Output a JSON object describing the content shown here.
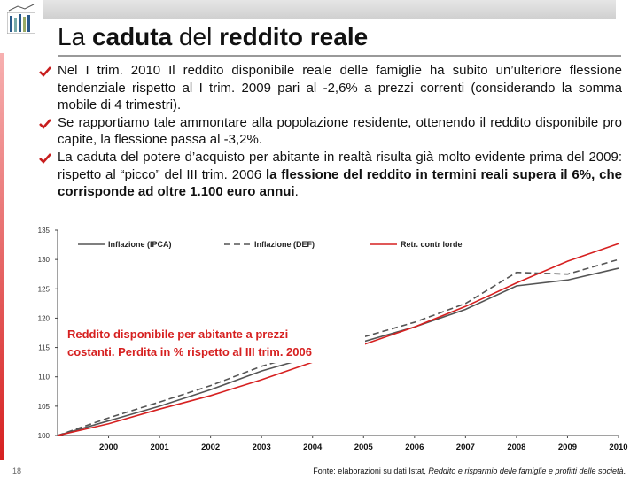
{
  "slide_number": "18",
  "title_parts": [
    "La ",
    "caduta",
    " del ",
    "reddito reale"
  ],
  "bullets": [
    [
      "Nel I trim. 2010 Il reddito disponibile reale delle famiglie ha subito un’ulteriore flessione tendenziale rispetto al I trim. 2009 pari al -2,6% a prezzi correnti (considerando la somma mobile di 4 trimestri)."
    ],
    [
      "Se rapportiamo tale ammontare alla popolazione residente, ottenendo il reddito disponibile pro capite, la flessione passa al -3,2%."
    ],
    [
      "La caduta del potere d’acquisto per abitante in realtà risulta già molto evidente prima del 2009: rispetto al “picco” del III trim. 2006 ",
      "la flessione del reddito in termini reali supera il 6%, che corrisponde ad oltre 1.100 euro annui",
      "."
    ]
  ],
  "chart_note": [
    "Reddito disponibile per abitante a prezzi",
    "costanti. Perdita in % rispetto al III trim. 2006"
  ],
  "source_parts": [
    "Fonte: elaborazioni su dati Istat, ",
    "Reddito e risparmio delle famiglie e profitti delle società",
    "."
  ],
  "chart_data": {
    "type": "line",
    "x": [
      1999,
      2000,
      2001,
      2002,
      2003,
      2004,
      2005,
      2006,
      2007,
      2008,
      2009,
      2010
    ],
    "xlim": [
      1999,
      2010
    ],
    "xticks": [
      2000,
      2001,
      2002,
      2003,
      2004,
      2005,
      2006,
      2007,
      2008,
      2009,
      2010
    ],
    "ylim": [
      100,
      135
    ],
    "yticks": [
      100,
      105,
      110,
      115,
      120,
      125,
      130,
      135
    ],
    "series": [
      {
        "name": "Inflazione (IPCA)",
        "color": "#555555",
        "dash": false,
        "values": [
          100,
          102.5,
          105,
          107.8,
          111,
          113.5,
          116,
          118.5,
          121.5,
          125.5,
          126.5,
          128.5
        ]
      },
      {
        "name": "Inflazione (DEF)",
        "color": "#555555",
        "dash": true,
        "values": [
          100,
          103,
          105.7,
          108.5,
          111.8,
          114.3,
          116.8,
          119.3,
          122.5,
          127.8,
          127.5,
          130
        ]
      },
      {
        "name": "Retr. contr lorde",
        "color": "#d62020",
        "dash": false,
        "values": [
          100,
          102,
          104.5,
          106.8,
          109.5,
          112.5,
          115.5,
          118.5,
          122,
          126,
          129.7,
          132.7
        ]
      }
    ]
  }
}
